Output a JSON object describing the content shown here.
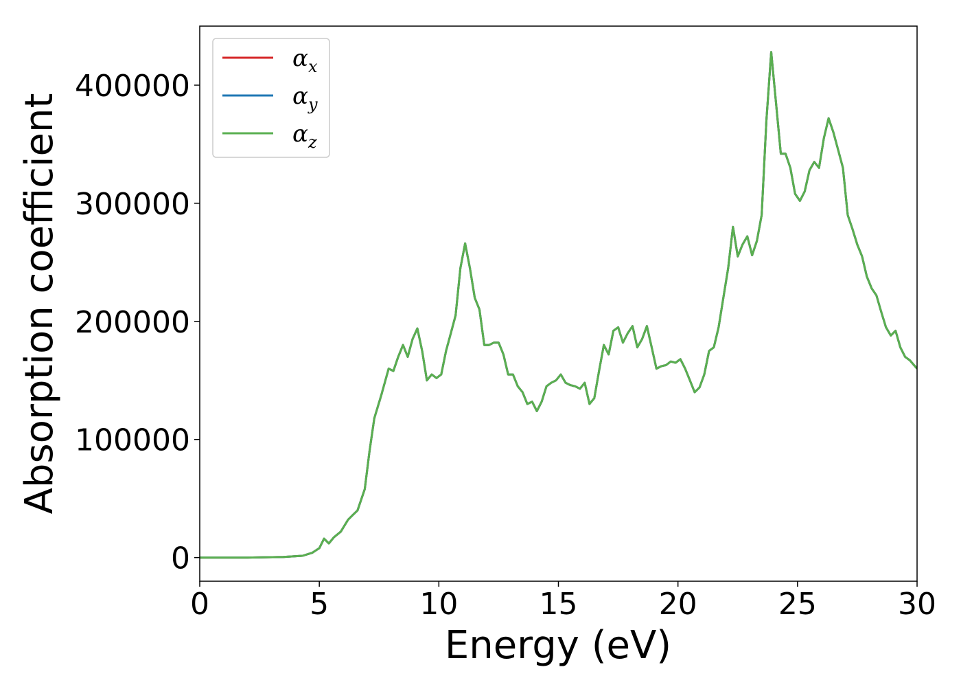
{
  "chart_data": {
    "type": "line",
    "xlabel": "Energy (eV)",
    "ylabel": "Absorption coefficient",
    "xlim": [
      0,
      30
    ],
    "ylim": [
      -20000,
      450000
    ],
    "xticks": [
      0,
      5,
      10,
      15,
      20,
      25,
      30
    ],
    "yticks": [
      0,
      100000,
      200000,
      300000,
      400000
    ],
    "grid": false,
    "legend_position": "top-left",
    "series": [
      {
        "name": "α",
        "subscript": "x",
        "color": "#d62728",
        "x": [
          0,
          2,
          3.5,
          4.3,
          4.7,
          5.0,
          5.2,
          5.4,
          5.6,
          5.9,
          6.2,
          6.4,
          6.6,
          6.9,
          7.1,
          7.3,
          7.6,
          7.9,
          8.1,
          8.3,
          8.5,
          8.7,
          8.9,
          9.1,
          9.3,
          9.5,
          9.7,
          9.9,
          10.1,
          10.3,
          10.5,
          10.7,
          10.9,
          11.1,
          11.3,
          11.5,
          11.7,
          11.9,
          12.1,
          12.3,
          12.5,
          12.7,
          12.9,
          13.1,
          13.3,
          13.5,
          13.7,
          13.9,
          14.1,
          14.3,
          14.5,
          14.7,
          14.9,
          15.1,
          15.3,
          15.5,
          15.7,
          15.9,
          16.1,
          16.3,
          16.5,
          16.7,
          16.9,
          17.1,
          17.3,
          17.5,
          17.7,
          17.9,
          18.1,
          18.3,
          18.5,
          18.7,
          18.9,
          19.1,
          19.3,
          19.5,
          19.7,
          19.9,
          20.1,
          20.3,
          20.5,
          20.7,
          20.9,
          21.1,
          21.3,
          21.5,
          21.7,
          21.9,
          22.1,
          22.3,
          22.5,
          22.7,
          22.9,
          23.1,
          23.3,
          23.5,
          23.7,
          23.9,
          24.1,
          24.3,
          24.5,
          24.7,
          24.9,
          25.1,
          25.3,
          25.5,
          25.7,
          25.9,
          26.1,
          26.3,
          26.5,
          26.7,
          26.9,
          27.1,
          27.3,
          27.5,
          27.7,
          27.9,
          28.1,
          28.3,
          28.5,
          28.7,
          28.9,
          29.1,
          29.3,
          29.5,
          29.7,
          30.0
        ],
        "y": [
          0,
          0,
          500,
          1500,
          4000,
          8000,
          16000,
          12000,
          17000,
          22000,
          32000,
          36000,
          40000,
          58000,
          90000,
          118000,
          138000,
          160000,
          158000,
          170000,
          180000,
          170000,
          185000,
          194000,
          175000,
          150000,
          155000,
          152000,
          155000,
          175000,
          190000,
          205000,
          245000,
          266000,
          245000,
          220000,
          210000,
          180000,
          180000,
          182000,
          182000,
          172000,
          155000,
          155000,
          145000,
          140000,
          130000,
          132000,
          124000,
          132000,
          145000,
          148000,
          150000,
          155000,
          148000,
          146000,
          145000,
          143000,
          148000,
          130000,
          135000,
          158000,
          180000,
          172000,
          192000,
          195000,
          182000,
          190000,
          196000,
          178000,
          185000,
          196000,
          178000,
          160000,
          162000,
          163000,
          166000,
          165000,
          168000,
          160000,
          150000,
          140000,
          144000,
          155000,
          175000,
          178000,
          195000,
          220000,
          245000,
          280000,
          255000,
          265000,
          272000,
          256000,
          268000,
          290000,
          370000,
          428000,
          385000,
          342000,
          342000,
          330000,
          308000,
          302000,
          310000,
          328000,
          335000,
          330000,
          355000,
          372000,
          360000,
          345000,
          330000,
          290000,
          278000,
          265000,
          255000,
          238000,
          228000,
          222000,
          208000,
          195000,
          188000,
          192000,
          178000,
          170000,
          167000,
          160000
        ]
      },
      {
        "name": "α",
        "subscript": "y",
        "color": "#1f77b4",
        "x": [
          0,
          2,
          3.5,
          4.3,
          4.7,
          5.0,
          5.2,
          5.4,
          5.6,
          5.9,
          6.2,
          6.4,
          6.6,
          6.9,
          7.1,
          7.3,
          7.6,
          7.9,
          8.1,
          8.3,
          8.5,
          8.7,
          8.9,
          9.1,
          9.3,
          9.5,
          9.7,
          9.9,
          10.1,
          10.3,
          10.5,
          10.7,
          10.9,
          11.1,
          11.3,
          11.5,
          11.7,
          11.9,
          12.1,
          12.3,
          12.5,
          12.7,
          12.9,
          13.1,
          13.3,
          13.5,
          13.7,
          13.9,
          14.1,
          14.3,
          14.5,
          14.7,
          14.9,
          15.1,
          15.3,
          15.5,
          15.7,
          15.9,
          16.1,
          16.3,
          16.5,
          16.7,
          16.9,
          17.1,
          17.3,
          17.5,
          17.7,
          17.9,
          18.1,
          18.3,
          18.5,
          18.7,
          18.9,
          19.1,
          19.3,
          19.5,
          19.7,
          19.9,
          20.1,
          20.3,
          20.5,
          20.7,
          20.9,
          21.1,
          21.3,
          21.5,
          21.7,
          21.9,
          22.1,
          22.3,
          22.5,
          22.7,
          22.9,
          23.1,
          23.3,
          23.5,
          23.7,
          23.9,
          24.1,
          24.3,
          24.5,
          24.7,
          24.9,
          25.1,
          25.3,
          25.5,
          25.7,
          25.9,
          26.1,
          26.3,
          26.5,
          26.7,
          26.9,
          27.1,
          27.3,
          27.5,
          27.7,
          27.9,
          28.1,
          28.3,
          28.5,
          28.7,
          28.9,
          29.1,
          29.3,
          29.5,
          29.7,
          30.0
        ],
        "y": [
          0,
          0,
          500,
          1500,
          4000,
          8000,
          16000,
          12000,
          17000,
          22000,
          32000,
          36000,
          40000,
          58000,
          90000,
          118000,
          138000,
          160000,
          158000,
          170000,
          180000,
          170000,
          185000,
          194000,
          175000,
          150000,
          155000,
          152000,
          155000,
          175000,
          190000,
          205000,
          245000,
          266000,
          245000,
          220000,
          210000,
          180000,
          180000,
          182000,
          182000,
          172000,
          155000,
          155000,
          145000,
          140000,
          130000,
          132000,
          124000,
          132000,
          145000,
          148000,
          150000,
          155000,
          148000,
          146000,
          145000,
          143000,
          148000,
          130000,
          135000,
          158000,
          180000,
          172000,
          192000,
          195000,
          182000,
          190000,
          196000,
          178000,
          185000,
          196000,
          178000,
          160000,
          162000,
          163000,
          166000,
          165000,
          168000,
          160000,
          150000,
          140000,
          144000,
          155000,
          175000,
          178000,
          195000,
          220000,
          245000,
          280000,
          255000,
          265000,
          272000,
          256000,
          268000,
          290000,
          370000,
          428000,
          385000,
          342000,
          342000,
          330000,
          308000,
          302000,
          310000,
          328000,
          335000,
          330000,
          355000,
          372000,
          360000,
          345000,
          330000,
          290000,
          278000,
          265000,
          255000,
          238000,
          228000,
          222000,
          208000,
          195000,
          188000,
          192000,
          178000,
          170000,
          167000,
          160000
        ]
      },
      {
        "name": "α",
        "subscript": "z",
        "color": "#5aaf50",
        "x": [
          0,
          2,
          3.5,
          4.3,
          4.7,
          5.0,
          5.2,
          5.4,
          5.6,
          5.9,
          6.2,
          6.4,
          6.6,
          6.9,
          7.1,
          7.3,
          7.6,
          7.9,
          8.1,
          8.3,
          8.5,
          8.7,
          8.9,
          9.1,
          9.3,
          9.5,
          9.7,
          9.9,
          10.1,
          10.3,
          10.5,
          10.7,
          10.9,
          11.1,
          11.3,
          11.5,
          11.7,
          11.9,
          12.1,
          12.3,
          12.5,
          12.7,
          12.9,
          13.1,
          13.3,
          13.5,
          13.7,
          13.9,
          14.1,
          14.3,
          14.5,
          14.7,
          14.9,
          15.1,
          15.3,
          15.5,
          15.7,
          15.9,
          16.1,
          16.3,
          16.5,
          16.7,
          16.9,
          17.1,
          17.3,
          17.5,
          17.7,
          17.9,
          18.1,
          18.3,
          18.5,
          18.7,
          18.9,
          19.1,
          19.3,
          19.5,
          19.7,
          19.9,
          20.1,
          20.3,
          20.5,
          20.7,
          20.9,
          21.1,
          21.3,
          21.5,
          21.7,
          21.9,
          22.1,
          22.3,
          22.5,
          22.7,
          22.9,
          23.1,
          23.3,
          23.5,
          23.7,
          23.9,
          24.1,
          24.3,
          24.5,
          24.7,
          24.9,
          25.1,
          25.3,
          25.5,
          25.7,
          25.9,
          26.1,
          26.3,
          26.5,
          26.7,
          26.9,
          27.1,
          27.3,
          27.5,
          27.7,
          27.9,
          28.1,
          28.3,
          28.5,
          28.7,
          28.9,
          29.1,
          29.3,
          29.5,
          29.7,
          30.0
        ],
        "y": [
          0,
          0,
          500,
          1500,
          4000,
          8000,
          16000,
          12000,
          17000,
          22000,
          32000,
          36000,
          40000,
          58000,
          90000,
          118000,
          138000,
          160000,
          158000,
          170000,
          180000,
          170000,
          185000,
          194000,
          175000,
          150000,
          155000,
          152000,
          155000,
          175000,
          190000,
          205000,
          245000,
          266000,
          245000,
          220000,
          210000,
          180000,
          180000,
          182000,
          182000,
          172000,
          155000,
          155000,
          145000,
          140000,
          130000,
          132000,
          124000,
          132000,
          145000,
          148000,
          150000,
          155000,
          148000,
          146000,
          145000,
          143000,
          148000,
          130000,
          135000,
          158000,
          180000,
          172000,
          192000,
          195000,
          182000,
          190000,
          196000,
          178000,
          185000,
          196000,
          178000,
          160000,
          162000,
          163000,
          166000,
          165000,
          168000,
          160000,
          150000,
          140000,
          144000,
          155000,
          175000,
          178000,
          195000,
          220000,
          245000,
          280000,
          255000,
          265000,
          272000,
          256000,
          268000,
          290000,
          370000,
          428000,
          385000,
          342000,
          342000,
          330000,
          308000,
          302000,
          310000,
          328000,
          335000,
          330000,
          355000,
          372000,
          360000,
          345000,
          330000,
          290000,
          278000,
          265000,
          255000,
          238000,
          228000,
          222000,
          208000,
          195000,
          188000,
          192000,
          178000,
          170000,
          167000,
          160000
        ]
      }
    ]
  }
}
